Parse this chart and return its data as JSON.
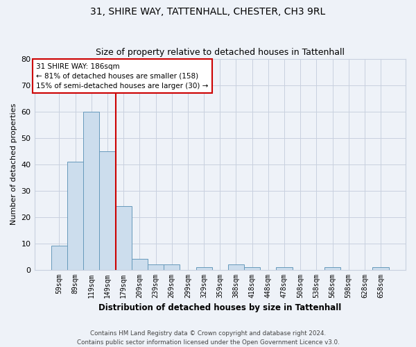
{
  "title": "31, SHIRE WAY, TATTENHALL, CHESTER, CH3 9RL",
  "subtitle": "Size of property relative to detached houses in Tattenhall",
  "xlabel": "Distribution of detached houses by size in Tattenhall",
  "ylabel": "Number of detached properties",
  "bar_labels": [
    "59sqm",
    "89sqm",
    "119sqm",
    "149sqm",
    "179sqm",
    "209sqm",
    "239sqm",
    "269sqm",
    "299sqm",
    "329sqm",
    "359sqm",
    "388sqm",
    "418sqm",
    "448sqm",
    "478sqm",
    "508sqm",
    "538sqm",
    "568sqm",
    "598sqm",
    "628sqm",
    "658sqm"
  ],
  "bar_values": [
    9,
    41,
    60,
    45,
    24,
    4,
    2,
    2,
    0,
    1,
    0,
    2,
    1,
    0,
    1,
    0,
    0,
    1,
    0,
    0,
    1
  ],
  "bar_color": "#ccdded",
  "bar_edgecolor": "#6699bb",
  "grid_color": "#c8d0df",
  "background_color": "#eef2f8",
  "vline_x": 3.5,
  "vline_color": "#cc0000",
  "annotation_text": "31 SHIRE WAY: 186sqm\n← 81% of detached houses are smaller (158)\n15% of semi-detached houses are larger (30) →",
  "annotation_box_color": "#ffffff",
  "annotation_box_edgecolor": "#cc0000",
  "ylim": [
    0,
    80
  ],
  "yticks": [
    0,
    10,
    20,
    30,
    40,
    50,
    60,
    70,
    80
  ],
  "footer_line1": "Contains HM Land Registry data © Crown copyright and database right 2024.",
  "footer_line2": "Contains public sector information licensed under the Open Government Licence v3.0."
}
